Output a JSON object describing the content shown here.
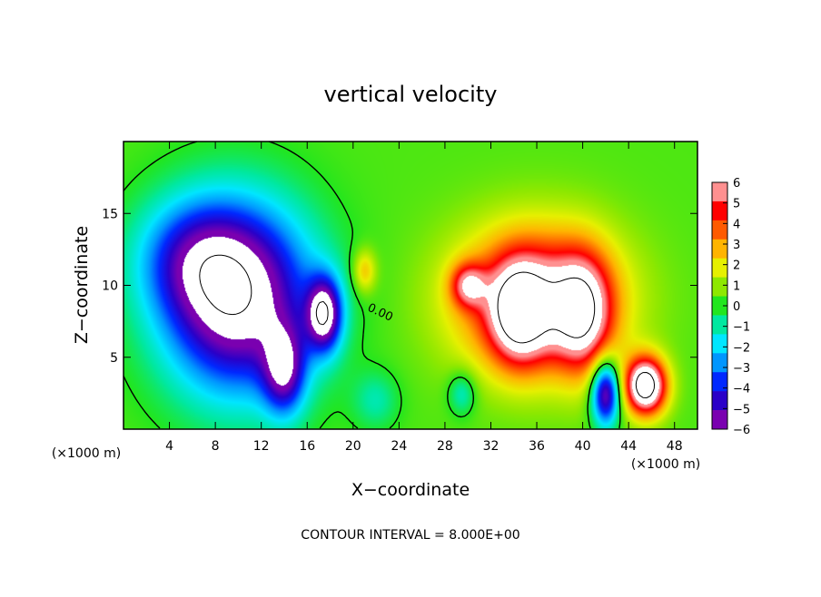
{
  "chart_data": {
    "type": "heatmap",
    "title": "vertical velocity",
    "xlabel": "X−coordinate",
    "ylabel": "Z−coordinate",
    "x_unit_left": "(×1000 m)",
    "x_unit_right": "(×1000 m)",
    "footer": "CONTOUR INTERVAL = 8.000E+00",
    "xlim": [
      0,
      50
    ],
    "ylim": [
      0,
      20
    ],
    "x_ticks": [
      4,
      8,
      12,
      16,
      20,
      24,
      28,
      32,
      36,
      40,
      44,
      48
    ],
    "y_ticks": [
      5,
      10,
      15
    ],
    "zero_contour_label": "0.00",
    "colorbar": {
      "levels": [
        -6,
        -5,
        -4,
        -3,
        -2,
        -1,
        0,
        1,
        2,
        3,
        4,
        5,
        6
      ],
      "labels": [
        "6",
        "5",
        "4",
        "3",
        "2",
        "1",
        "0",
        "−1",
        "−2",
        "−3",
        "−4",
        "−5",
        "−6"
      ]
    },
    "colors": {
      "below_min": "#ffffff",
      "above_max": "#ffffff",
      "scale": [
        "#7a00b0",
        "#2a00c8",
        "#0028ff",
        "#0096ff",
        "#00e6ff",
        "#00e8a0",
        "#22e61e",
        "#8ee800",
        "#e6f000",
        "#ffb400",
        "#ff5a00",
        "#ff0000",
        "#ff9090"
      ]
    },
    "features": [
      {
        "kind": "downdraft",
        "x": 10,
        "z": 9,
        "sx": 6.5,
        "sy": 6.5,
        "amp": -8
      },
      {
        "kind": "downdraft",
        "x": 14,
        "z": 4,
        "sx": 1.8,
        "sy": 3.0,
        "amp": -5
      },
      {
        "kind": "downdraft",
        "x": 17.5,
        "z": 8,
        "sx": 1.5,
        "sy": 2.5,
        "amp": -7
      },
      {
        "kind": "downdraft",
        "x": 6,
        "z": 12,
        "sx": 5,
        "sy": 4,
        "amp": -3
      },
      {
        "kind": "downdraft",
        "x": 22,
        "z": 2,
        "sx": 2,
        "sy": 2,
        "amp": -1.5
      },
      {
        "kind": "downdraft",
        "x": 29.5,
        "z": 2.5,
        "sx": 1.2,
        "sy": 1.5,
        "amp": -2
      },
      {
        "kind": "downdraft",
        "x": 42,
        "z": 2.5,
        "sx": 1.2,
        "sy": 2.2,
        "amp": -7
      },
      {
        "kind": "updraft",
        "x": 36,
        "z": 9,
        "sx": 7,
        "sy": 5,
        "amp": 6
      },
      {
        "kind": "updraft",
        "x": 34.5,
        "z": 8,
        "sx": 2.5,
        "sy": 3.5,
        "amp": 5
      },
      {
        "kind": "updraft",
        "x": 40,
        "z": 8,
        "sx": 2.5,
        "sy": 4,
        "amp": 5
      },
      {
        "kind": "updraft",
        "x": 30,
        "z": 10,
        "sx": 1.5,
        "sy": 1.5,
        "amp": 4
      },
      {
        "kind": "updraft",
        "x": 45.5,
        "z": 3,
        "sx": 1.8,
        "sy": 2.0,
        "amp": 9
      },
      {
        "kind": "updraft",
        "x": 21,
        "z": 11,
        "sx": 1.0,
        "sy": 1.5,
        "amp": 2.5
      }
    ]
  }
}
